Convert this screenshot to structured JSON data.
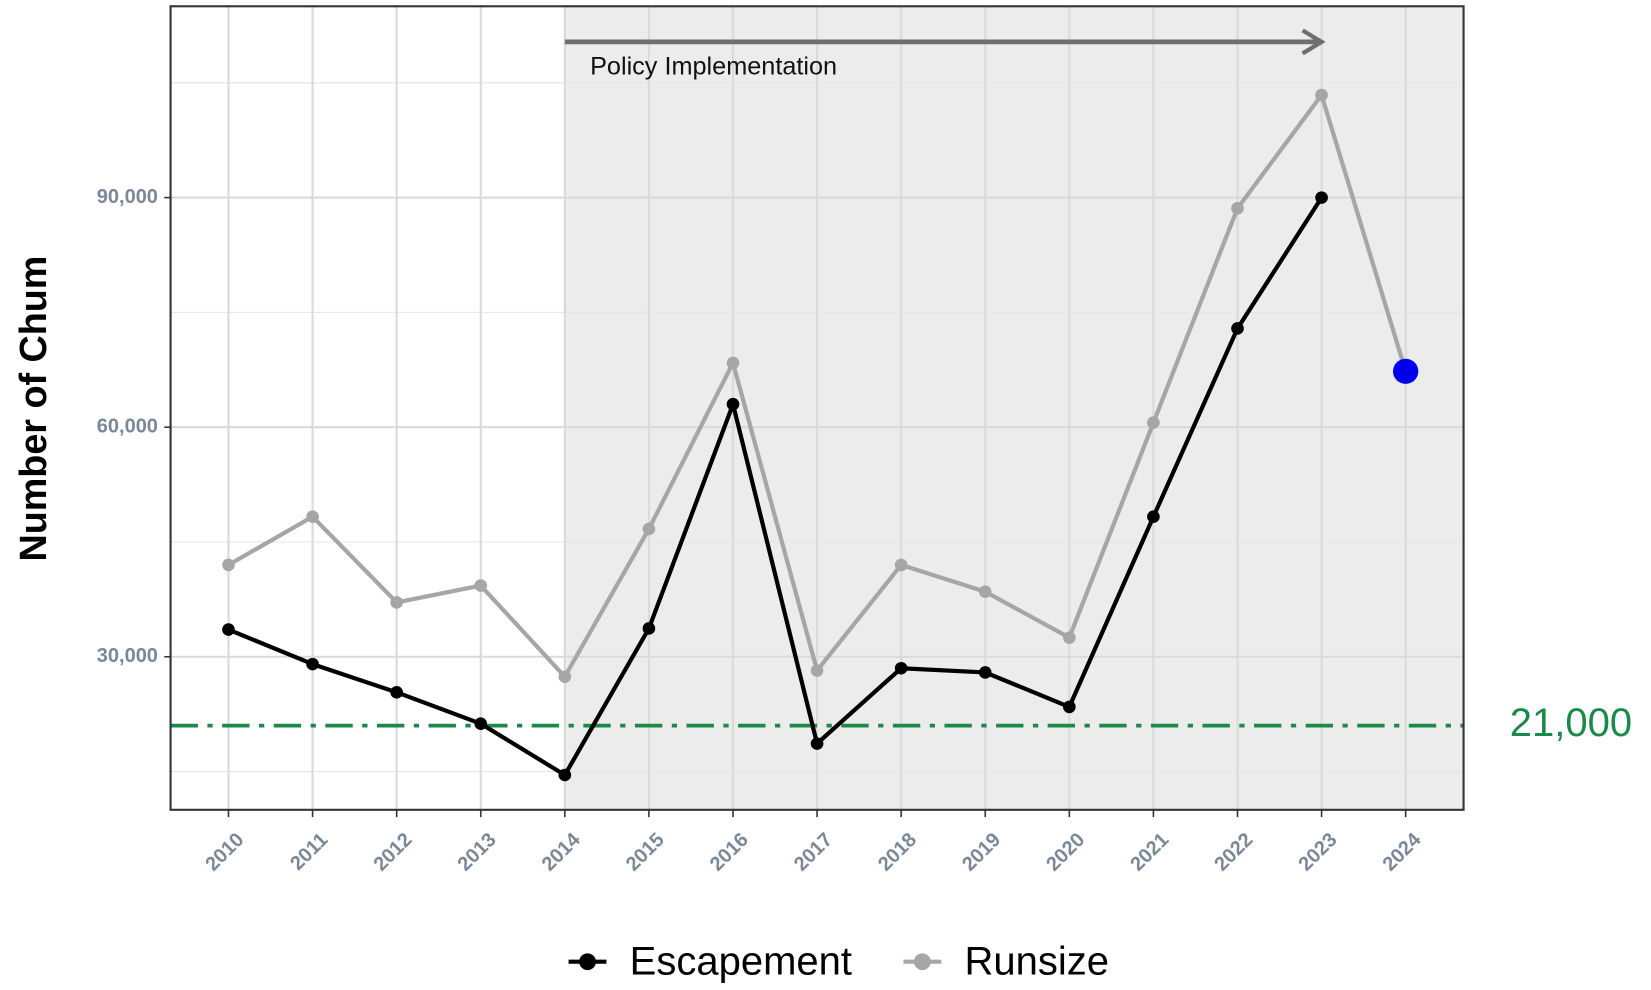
{
  "chart_data": {
    "type": "line",
    "y_label": "Number of Chum",
    "categories": [
      "2010",
      "2011",
      "2012",
      "2013",
      "2014",
      "2015",
      "2016",
      "2017",
      "2018",
      "2019",
      "2020",
      "2021",
      "2022",
      "2023",
      "2024"
    ],
    "series": [
      {
        "name": "Escapement",
        "color": "#000000",
        "values": [
          33550,
          29040,
          25350,
          21250,
          14550,
          33700,
          63000,
          18650,
          28500,
          27950,
          23450,
          48300,
          72900,
          90000,
          null
        ]
      },
      {
        "name": "Runsize",
        "color": "#a6a6a6",
        "highlight_last_color": "#0000ee",
        "values": [
          42000,
          48300,
          37100,
          39300,
          27400,
          46700,
          68400,
          28200,
          42000,
          38500,
          32500,
          60600,
          88600,
          103400,
          67300
        ]
      }
    ],
    "ylim": [
      10000,
      115000
    ],
    "yticks": [
      {
        "value": 30000,
        "label": "30,000"
      },
      {
        "value": 60000,
        "label": "60,000"
      },
      {
        "value": 90000,
        "label": "90,000"
      }
    ],
    "minor_yticks": [
      15000,
      45000,
      75000,
      105000
    ],
    "grid": true,
    "legend": "bottom",
    "threshold": {
      "value": 21000,
      "label": "21,000",
      "color": "#1a8a4a"
    },
    "policy": {
      "start": "2014",
      "end": "2023",
      "label": "Policy Implementation"
    }
  }
}
